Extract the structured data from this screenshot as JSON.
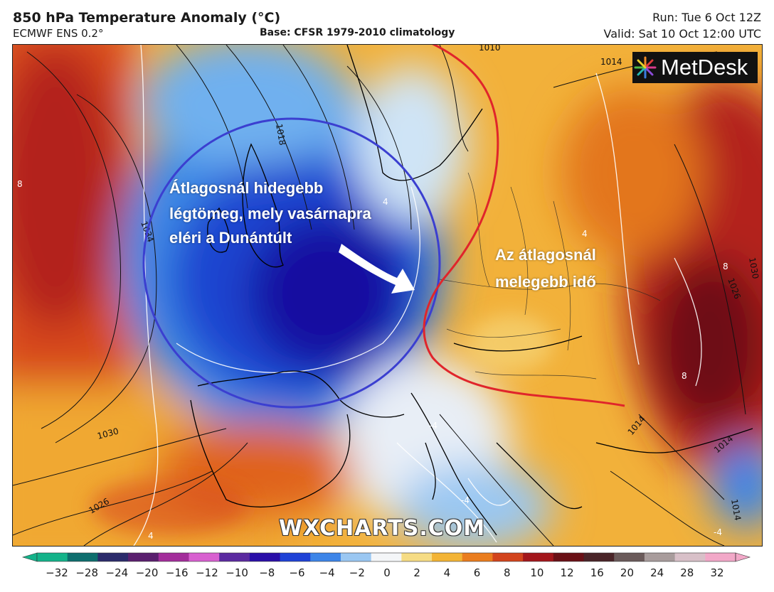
{
  "header": {
    "title": "850 hPa Temperature Anomaly (°C)",
    "model": "ECMWF ENS 0.2°",
    "base": "Base: CFSR 1979-2010 climatology",
    "run": "Run: Tue 6 Oct 12Z",
    "valid": "Valid: Sat 10 Oct 12:00 UTC"
  },
  "logo": {
    "text": "MetDesk"
  },
  "annotations": {
    "cold": [
      "Átlagosnál hidegebb",
      "légtömeg, mely vasárnapra",
      "eléri a Dunántúlt"
    ],
    "warm": [
      "Az átlagosnál",
      "melegebb idő"
    ]
  },
  "watermark": "WXCHARTS.COM",
  "isobar_labels": [
    "1010",
    "1014",
    "1018",
    "1034",
    "1030",
    "1026",
    "1030",
    "1026",
    "1014",
    "1014",
    "1014"
  ],
  "anomaly_labels": [
    "8",
    "4",
    "4",
    "8",
    "8",
    "-4",
    "-4",
    "-4",
    "4"
  ],
  "colorbar": {
    "ticks": [
      "−32",
      "−28",
      "−24",
      "−20",
      "−16",
      "−12",
      "−10",
      "−8",
      "−6",
      "−4",
      "−2",
      "0",
      "2",
      "4",
      "6",
      "8",
      "10",
      "12",
      "16",
      "20",
      "24",
      "28",
      "32"
    ],
    "colors": [
      "#14b38a",
      "#0e6e6e",
      "#2b2b6b",
      "#5a1f6e",
      "#a32d9b",
      "#d860d0",
      "#5b2aa0",
      "#2a0fa8",
      "#1f42d6",
      "#3d85e8",
      "#9ac7f2",
      "#f4f6f8",
      "#f6dc84",
      "#f3b435",
      "#ea7d1e",
      "#d2441c",
      "#a3161b",
      "#6a1016",
      "#4a2428",
      "#6a5a5a",
      "#a89c9c",
      "#d8c0c8",
      "#f2a8c8"
    ]
  },
  "colors": {
    "cold_outline": "#3b3fd0",
    "warm_front": "#e0252b"
  }
}
